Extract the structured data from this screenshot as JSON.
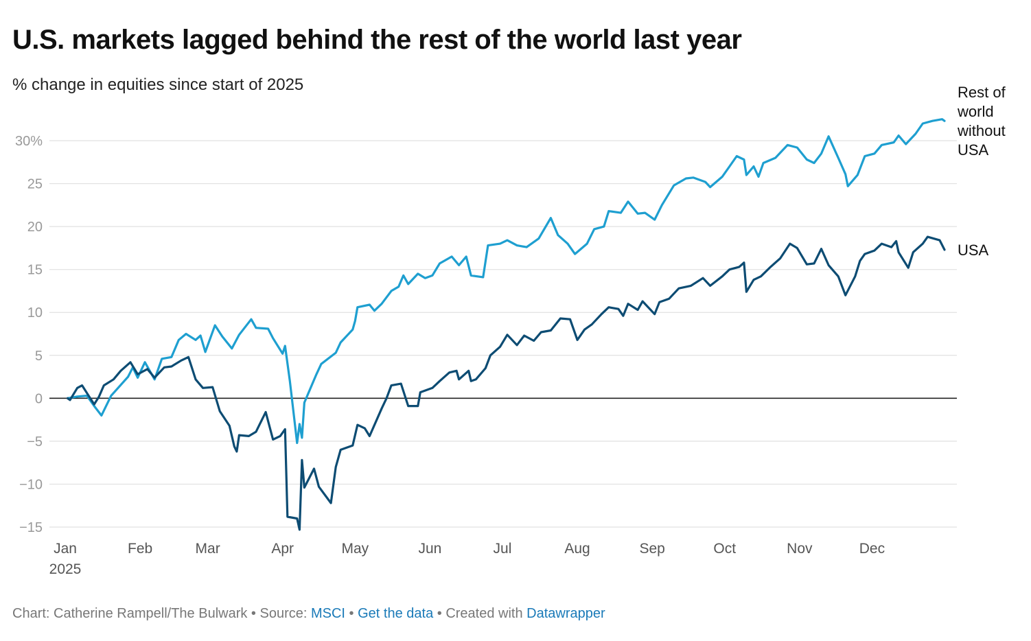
{
  "header": {
    "title": "U.S. markets lagged behind the rest of the world last year",
    "subtitle": "% change in equities since start of 2025"
  },
  "footer": {
    "chart_prefix": "Chart: Catherine Rampell/The Bulwark",
    "sep1": " • ",
    "source_label": "Source: ",
    "source_link": "MSCI",
    "sep2": " • ",
    "data_link": "Get the data",
    "sep3": " • ",
    "created_label": "Created with ",
    "created_link": "Datawrapper"
  },
  "colors": {
    "rest_of_world": "#1e9fd0",
    "usa": "#0d4c73",
    "gridline": "#e0e0e0",
    "zero_line": "#222222",
    "tick_text": "#999999",
    "link": "#1a7ab8"
  },
  "chart_data": {
    "type": "line",
    "title": "U.S. markets lagged behind the rest of the world last year",
    "subtitle": "% change in equities since start of 2025",
    "xlabel": "",
    "ylabel": "",
    "x_range": [
      "2025-01-01",
      "2025-12-31"
    ],
    "ylim": [
      -16,
      33
    ],
    "y_ticks": [
      -15,
      -10,
      -5,
      0,
      5,
      10,
      15,
      20,
      25,
      30
    ],
    "y_tick_labels": [
      "−15",
      "−10",
      "−5",
      "0",
      "5",
      "10",
      "15",
      "20",
      "25",
      "30%"
    ],
    "x_ticks": [
      "2025-01-01",
      "2025-02-01",
      "2025-03-01",
      "2025-04-01",
      "2025-05-01",
      "2025-06-01",
      "2025-07-01",
      "2025-08-01",
      "2025-09-01",
      "2025-10-01",
      "2025-11-01",
      "2025-12-01"
    ],
    "x_tick_labels": [
      "Jan",
      "Feb",
      "Mar",
      "Apr",
      "May",
      "Jun",
      "Jul",
      "Aug",
      "Sep",
      "Oct",
      "Nov",
      "Dec"
    ],
    "x_year_label": "2025",
    "grid": true,
    "legend": "direct labels at right end of lines",
    "series": [
      {
        "name": "Rest of world without USA",
        "label_lines": [
          "Rest of",
          "world",
          "without",
          "USA"
        ],
        "color": "#1e9fd0",
        "points": [
          [
            "2025-01-02",
            0.0
          ],
          [
            "2025-01-06",
            0.2
          ],
          [
            "2025-01-10",
            0.3
          ],
          [
            "2025-01-13",
            -0.9
          ],
          [
            "2025-01-16",
            -2.0
          ],
          [
            "2025-01-20",
            0.3
          ],
          [
            "2025-01-27",
            2.5
          ],
          [
            "2025-01-29",
            3.6
          ],
          [
            "2025-01-31",
            2.4
          ],
          [
            "2025-02-03",
            4.2
          ],
          [
            "2025-02-07",
            2.2
          ],
          [
            "2025-02-10",
            4.6
          ],
          [
            "2025-02-14",
            4.8
          ],
          [
            "2025-02-17",
            6.8
          ],
          [
            "2025-02-20",
            7.5
          ],
          [
            "2025-02-24",
            6.8
          ],
          [
            "2025-02-26",
            7.3
          ],
          [
            "2025-02-28",
            5.4
          ],
          [
            "2025-03-04",
            8.5
          ],
          [
            "2025-03-07",
            7.2
          ],
          [
            "2025-03-11",
            5.8
          ],
          [
            "2025-03-14",
            7.4
          ],
          [
            "2025-03-19",
            9.2
          ],
          [
            "2025-03-21",
            8.2
          ],
          [
            "2025-03-26",
            8.1
          ],
          [
            "2025-03-28",
            7.0
          ],
          [
            "2025-04-01",
            5.2
          ],
          [
            "2025-04-02",
            6.1
          ],
          [
            "2025-04-04",
            2.0
          ],
          [
            "2025-04-07",
            -5.2
          ],
          [
            "2025-04-08",
            -3.0
          ],
          [
            "2025-04-09",
            -4.6
          ],
          [
            "2025-04-10",
            -0.5
          ],
          [
            "2025-04-15",
            2.8
          ],
          [
            "2025-04-17",
            4.0
          ],
          [
            "2025-04-23",
            5.3
          ],
          [
            "2025-04-25",
            6.5
          ],
          [
            "2025-04-30",
            8.0
          ],
          [
            "2025-05-01",
            9.0
          ],
          [
            "2025-05-02",
            10.6
          ],
          [
            "2025-05-07",
            10.9
          ],
          [
            "2025-05-09",
            10.2
          ],
          [
            "2025-05-12",
            11.0
          ],
          [
            "2025-05-16",
            12.5
          ],
          [
            "2025-05-19",
            13.0
          ],
          [
            "2025-05-21",
            14.3
          ],
          [
            "2025-05-23",
            13.3
          ],
          [
            "2025-05-27",
            14.5
          ],
          [
            "2025-05-30",
            14.0
          ],
          [
            "2025-06-02",
            14.3
          ],
          [
            "2025-06-05",
            15.7
          ],
          [
            "2025-06-10",
            16.5
          ],
          [
            "2025-06-13",
            15.5
          ],
          [
            "2025-06-16",
            16.5
          ],
          [
            "2025-06-18",
            14.3
          ],
          [
            "2025-06-23",
            14.1
          ],
          [
            "2025-06-25",
            17.8
          ],
          [
            "2025-06-30",
            18.0
          ],
          [
            "2025-07-03",
            18.4
          ],
          [
            "2025-07-07",
            17.8
          ],
          [
            "2025-07-11",
            17.6
          ],
          [
            "2025-07-16",
            18.6
          ],
          [
            "2025-07-21",
            21.0
          ],
          [
            "2025-07-24",
            19.0
          ],
          [
            "2025-07-28",
            18.0
          ],
          [
            "2025-07-31",
            16.8
          ],
          [
            "2025-08-05",
            18.0
          ],
          [
            "2025-08-08",
            19.7
          ],
          [
            "2025-08-12",
            20.0
          ],
          [
            "2025-08-14",
            21.8
          ],
          [
            "2025-08-19",
            21.6
          ],
          [
            "2025-08-22",
            22.9
          ],
          [
            "2025-08-26",
            21.5
          ],
          [
            "2025-08-29",
            21.6
          ],
          [
            "2025-09-02",
            20.8
          ],
          [
            "2025-09-05",
            22.5
          ],
          [
            "2025-09-10",
            24.8
          ],
          [
            "2025-09-15",
            25.6
          ],
          [
            "2025-09-18",
            25.7
          ],
          [
            "2025-09-23",
            25.2
          ],
          [
            "2025-09-25",
            24.6
          ],
          [
            "2025-09-30",
            25.8
          ],
          [
            "2025-10-03",
            27.0
          ],
          [
            "2025-10-06",
            28.2
          ],
          [
            "2025-10-09",
            27.8
          ],
          [
            "2025-10-10",
            26.0
          ],
          [
            "2025-10-13",
            27.0
          ],
          [
            "2025-10-15",
            25.8
          ],
          [
            "2025-10-17",
            27.4
          ],
          [
            "2025-10-22",
            28.0
          ],
          [
            "2025-10-27",
            29.5
          ],
          [
            "2025-10-31",
            29.2
          ],
          [
            "2025-11-04",
            27.8
          ],
          [
            "2025-11-07",
            27.4
          ],
          [
            "2025-11-10",
            28.5
          ],
          [
            "2025-11-13",
            30.5
          ],
          [
            "2025-11-17",
            28.0
          ],
          [
            "2025-11-20",
            26.1
          ],
          [
            "2025-11-21",
            24.7
          ],
          [
            "2025-11-25",
            26.0
          ],
          [
            "2025-11-28",
            28.2
          ],
          [
            "2025-12-02",
            28.5
          ],
          [
            "2025-12-05",
            29.5
          ],
          [
            "2025-12-10",
            29.8
          ],
          [
            "2025-12-12",
            30.6
          ],
          [
            "2025-12-15",
            29.6
          ],
          [
            "2025-12-19",
            30.8
          ],
          [
            "2025-12-22",
            32.0
          ],
          [
            "2025-12-26",
            32.3
          ],
          [
            "2025-12-30",
            32.5
          ],
          [
            "2025-12-31",
            32.3
          ]
        ]
      },
      {
        "name": "USA",
        "label_lines": [
          "USA"
        ],
        "color": "#0d4c73",
        "points": [
          [
            "2025-01-02",
            0.0
          ],
          [
            "2025-01-03",
            -0.2
          ],
          [
            "2025-01-06",
            1.2
          ],
          [
            "2025-01-08",
            1.5
          ],
          [
            "2025-01-10",
            0.6
          ],
          [
            "2025-01-13",
            -0.7
          ],
          [
            "2025-01-15",
            0.2
          ],
          [
            "2025-01-17",
            1.5
          ],
          [
            "2025-01-21",
            2.2
          ],
          [
            "2025-01-24",
            3.2
          ],
          [
            "2025-01-28",
            4.2
          ],
          [
            "2025-01-31",
            2.8
          ],
          [
            "2025-02-04",
            3.4
          ],
          [
            "2025-02-07",
            2.4
          ],
          [
            "2025-02-11",
            3.6
          ],
          [
            "2025-02-14",
            3.7
          ],
          [
            "2025-02-18",
            4.4
          ],
          [
            "2025-02-21",
            4.8
          ],
          [
            "2025-02-24",
            2.2
          ],
          [
            "2025-02-27",
            1.2
          ],
          [
            "2025-03-03",
            1.3
          ],
          [
            "2025-03-06",
            -1.5
          ],
          [
            "2025-03-10",
            -3.2
          ],
          [
            "2025-03-12",
            -5.6
          ],
          [
            "2025-03-13",
            -6.2
          ],
          [
            "2025-03-14",
            -4.3
          ],
          [
            "2025-03-18",
            -4.4
          ],
          [
            "2025-03-21",
            -3.9
          ],
          [
            "2025-03-25",
            -1.6
          ],
          [
            "2025-03-28",
            -4.8
          ],
          [
            "2025-03-31",
            -4.4
          ],
          [
            "2025-04-02",
            -3.6
          ],
          [
            "2025-04-03",
            -13.8
          ],
          [
            "2025-04-07",
            -14.0
          ],
          [
            "2025-04-08",
            -15.3
          ],
          [
            "2025-04-09",
            -7.2
          ],
          [
            "2025-04-10",
            -10.4
          ],
          [
            "2025-04-14",
            -8.2
          ],
          [
            "2025-04-16",
            -10.3
          ],
          [
            "2025-04-21",
            -12.2
          ],
          [
            "2025-04-23",
            -8.0
          ],
          [
            "2025-04-25",
            -6.0
          ],
          [
            "2025-04-30",
            -5.5
          ],
          [
            "2025-05-02",
            -3.1
          ],
          [
            "2025-05-05",
            -3.5
          ],
          [
            "2025-05-07",
            -4.4
          ],
          [
            "2025-05-12",
            -1.2
          ],
          [
            "2025-05-14",
            0.0
          ],
          [
            "2025-05-16",
            1.5
          ],
          [
            "2025-05-20",
            1.7
          ],
          [
            "2025-05-23",
            -0.9
          ],
          [
            "2025-05-27",
            -0.9
          ],
          [
            "2025-05-28",
            0.7
          ],
          [
            "2025-06-02",
            1.2
          ],
          [
            "2025-06-05",
            2.0
          ],
          [
            "2025-06-09",
            3.0
          ],
          [
            "2025-06-12",
            3.2
          ],
          [
            "2025-06-13",
            2.2
          ],
          [
            "2025-06-17",
            3.2
          ],
          [
            "2025-06-18",
            2.0
          ],
          [
            "2025-06-20",
            2.2
          ],
          [
            "2025-06-24",
            3.5
          ],
          [
            "2025-06-26",
            5.0
          ],
          [
            "2025-06-30",
            6.0
          ],
          [
            "2025-07-03",
            7.4
          ],
          [
            "2025-07-07",
            6.2
          ],
          [
            "2025-07-10",
            7.3
          ],
          [
            "2025-07-14",
            6.7
          ],
          [
            "2025-07-17",
            7.7
          ],
          [
            "2025-07-21",
            7.9
          ],
          [
            "2025-07-25",
            9.3
          ],
          [
            "2025-07-29",
            9.2
          ],
          [
            "2025-08-01",
            6.8
          ],
          [
            "2025-08-04",
            8.0
          ],
          [
            "2025-08-07",
            8.6
          ],
          [
            "2025-08-11",
            9.8
          ],
          [
            "2025-08-14",
            10.6
          ],
          [
            "2025-08-18",
            10.4
          ],
          [
            "2025-08-20",
            9.6
          ],
          [
            "2025-08-22",
            11.0
          ],
          [
            "2025-08-26",
            10.3
          ],
          [
            "2025-08-28",
            11.3
          ],
          [
            "2025-09-02",
            9.8
          ],
          [
            "2025-09-04",
            11.2
          ],
          [
            "2025-09-08",
            11.6
          ],
          [
            "2025-09-12",
            12.8
          ],
          [
            "2025-09-17",
            13.1
          ],
          [
            "2025-09-22",
            14.0
          ],
          [
            "2025-09-25",
            13.1
          ],
          [
            "2025-09-30",
            14.2
          ],
          [
            "2025-10-03",
            15.0
          ],
          [
            "2025-10-07",
            15.3
          ],
          [
            "2025-10-09",
            15.8
          ],
          [
            "2025-10-10",
            12.4
          ],
          [
            "2025-10-13",
            13.8
          ],
          [
            "2025-10-16",
            14.2
          ],
          [
            "2025-10-20",
            15.3
          ],
          [
            "2025-10-24",
            16.3
          ],
          [
            "2025-10-28",
            18.0
          ],
          [
            "2025-10-31",
            17.5
          ],
          [
            "2025-11-04",
            15.6
          ],
          [
            "2025-11-07",
            15.7
          ],
          [
            "2025-11-10",
            17.4
          ],
          [
            "2025-11-13",
            15.5
          ],
          [
            "2025-11-17",
            14.2
          ],
          [
            "2025-11-20",
            12.0
          ],
          [
            "2025-11-24",
            14.2
          ],
          [
            "2025-11-26",
            16.0
          ],
          [
            "2025-11-28",
            16.8
          ],
          [
            "2025-12-02",
            17.2
          ],
          [
            "2025-12-05",
            18.0
          ],
          [
            "2025-12-09",
            17.6
          ],
          [
            "2025-12-11",
            18.3
          ],
          [
            "2025-12-12",
            17.0
          ],
          [
            "2025-12-16",
            15.2
          ],
          [
            "2025-12-18",
            17.0
          ],
          [
            "2025-12-22",
            18.0
          ],
          [
            "2025-12-24",
            18.8
          ],
          [
            "2025-12-29",
            18.4
          ],
          [
            "2025-12-31",
            17.3
          ]
        ]
      }
    ]
  }
}
